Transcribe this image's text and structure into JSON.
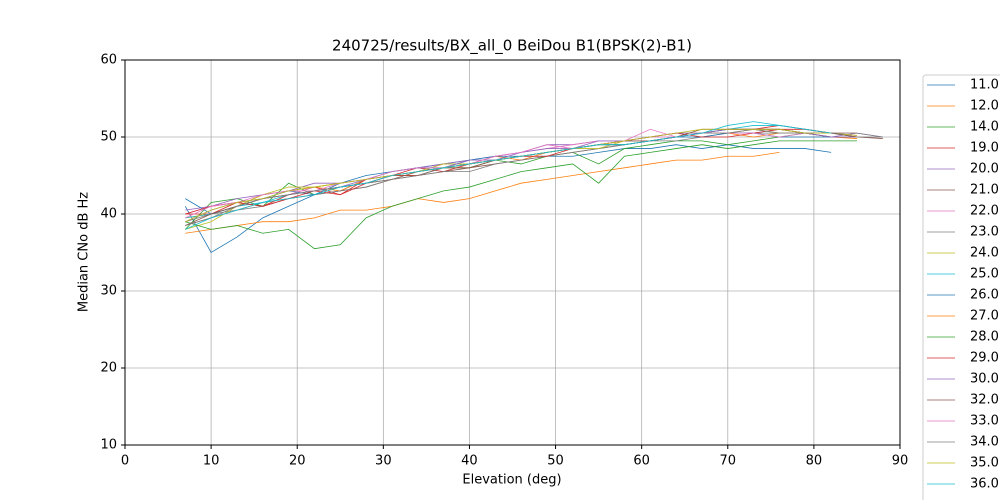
{
  "chart_data": {
    "type": "line",
    "title": "240725/results/BX_all_0 BeiDou B1(BPSK(2)-B1)",
    "x_label": "Elevation (deg)",
    "y_label": "Median CNo dB Hz",
    "x": [
      7,
      10,
      13,
      16,
      19,
      22,
      25,
      28,
      31,
      34,
      37,
      40,
      43,
      46,
      49,
      52,
      55,
      58,
      61,
      64,
      67,
      70,
      73,
      76,
      79,
      82,
      85,
      88
    ],
    "xlim": [
      0,
      90
    ],
    "xticks": [
      0,
      10,
      20,
      30,
      40,
      50,
      60,
      70,
      80,
      90
    ],
    "ylim": [
      10,
      60
    ],
    "yticks": [
      10,
      20,
      30,
      40,
      50,
      60
    ],
    "grid": true,
    "legend": "right",
    "series": [
      {
        "name": "11.0",
        "color": "#1f77b4",
        "values": [
          41,
          35,
          37,
          39.5,
          41,
          42.5,
          43,
          44.5,
          45.5,
          46,
          46.5,
          47,
          47,
          47.5,
          47.5,
          47.5,
          48,
          48.5,
          48.5,
          49,
          48.5,
          49,
          48.5,
          48.5,
          48.5,
          48,
          null,
          null
        ]
      },
      {
        "name": "12.0",
        "color": "#ff7f0e",
        "values": [
          39.5,
          40,
          41,
          42.5,
          43,
          43.5,
          43,
          44.5,
          45,
          45.5,
          46,
          46.5,
          47.5,
          47,
          48,
          48.5,
          49,
          49.5,
          49.5,
          50,
          50.5,
          50.5,
          50,
          50.5,
          50.5,
          50,
          49.8,
          null
        ]
      },
      {
        "name": "14.0",
        "color": "#2ca02c",
        "values": [
          38,
          41.5,
          42,
          41,
          44,
          42.5,
          43.5,
          44,
          45,
          45,
          46,
          46,
          47,
          46.5,
          47.5,
          48,
          46.5,
          48.5,
          49,
          49.5,
          49.5,
          49,
          49.5,
          50,
          50.5,
          50,
          null,
          null
        ]
      },
      {
        "name": "19.0",
        "color": "#d62728",
        "values": [
          40,
          40,
          41.5,
          41,
          42.5,
          43.5,
          42.5,
          44.5,
          45,
          46,
          45.5,
          46.5,
          47,
          47.5,
          48,
          48.5,
          49,
          49,
          49.5,
          50,
          50.5,
          51,
          51,
          51.5,
          51,
          50.5,
          50,
          null
        ]
      },
      {
        "name": "20.0",
        "color": "#9467bd",
        "values": [
          40.5,
          41,
          42,
          42.5,
          43,
          44,
          44,
          44.5,
          45.5,
          46,
          46.5,
          47,
          47.5,
          48,
          49,
          49,
          49.5,
          49.5,
          50,
          50.5,
          50.5,
          50.5,
          50.5,
          51,
          50.5,
          50,
          50.5,
          50
        ]
      },
      {
        "name": "21.0",
        "color": "#8c564b",
        "values": [
          38.5,
          39.5,
          40.5,
          41.5,
          42,
          42.5,
          43,
          43.5,
          44.5,
          45,
          45.5,
          46,
          46.5,
          47,
          47.5,
          48,
          48.5,
          49,
          49.5,
          50,
          50.5,
          51,
          51,
          51,
          50.5,
          50,
          50,
          49.8
        ]
      },
      {
        "name": "22.0",
        "color": "#e377c2",
        "values": [
          40,
          41,
          41.5,
          42,
          42.5,
          43.5,
          44,
          44.5,
          45,
          45.5,
          46.5,
          46.5,
          47.5,
          48,
          48.5,
          49,
          49.5,
          49.5,
          50,
          50,
          50.5,
          50.5,
          51,
          50.5,
          50.5,
          50.5,
          50.2,
          null
        ]
      },
      {
        "name": "23.0",
        "color": "#7f7f7f",
        "values": [
          39,
          40,
          40.5,
          41,
          42,
          42.5,
          43,
          43.5,
          44.5,
          45,
          45.5,
          45.5,
          46.5,
          47,
          47.5,
          48,
          48.5,
          49,
          49.5,
          49.5,
          50,
          50.5,
          50.5,
          50.5,
          50.5,
          50,
          50,
          50
        ]
      },
      {
        "name": "24.0",
        "color": "#bcbd22",
        "values": [
          38,
          39,
          41,
          42.5,
          43.5,
          43.5,
          44,
          44.5,
          45,
          45.5,
          46.5,
          46.5,
          47,
          47.5,
          48,
          48.5,
          48.5,
          49.5,
          50,
          50.5,
          50.5,
          50.5,
          51,
          50.5,
          50.5,
          50.5,
          50.2,
          null
        ]
      },
      {
        "name": "25.0",
        "color": "#17becf",
        "values": [
          39.5,
          40,
          41,
          41.5,
          42.5,
          43,
          43.5,
          44,
          45,
          45.5,
          46,
          46.5,
          47,
          47.5,
          48,
          48.5,
          49,
          49,
          49.5,
          50,
          50.5,
          51,
          51.5,
          51.5,
          51,
          50.5,
          50,
          null
        ]
      },
      {
        "name": "26.0",
        "color": "#1f77b4",
        "values": [
          42,
          40,
          41,
          42,
          43,
          42.5,
          44,
          45,
          45.5,
          46,
          46,
          47,
          47.5,
          47.5,
          48,
          48.5,
          49,
          49.5,
          49.5,
          50,
          50,
          50.5,
          50.5,
          50,
          50,
          50,
          null,
          null
        ]
      },
      {
        "name": "27.0",
        "color": "#ff7f0e",
        "values": [
          37.5,
          38,
          38.5,
          39,
          39,
          39.5,
          40.5,
          40.5,
          41,
          42,
          41.5,
          42,
          43,
          44,
          44.5,
          45,
          45.5,
          46,
          46.5,
          47,
          47,
          47.5,
          47.5,
          48,
          null,
          null,
          null,
          null
        ]
      },
      {
        "name": "28.0",
        "color": "#2ca02c",
        "values": [
          39,
          38,
          38.5,
          37.5,
          38,
          35.5,
          36,
          39.5,
          41,
          42,
          43,
          43.5,
          44.5,
          45.5,
          46,
          46.5,
          44,
          47.5,
          48,
          48.5,
          49,
          48.5,
          49,
          49.5,
          49.5,
          49.5,
          49.5,
          null
        ]
      },
      {
        "name": "29.0",
        "color": "#d62728",
        "values": [
          40,
          41,
          41.5,
          41,
          42,
          43,
          42.5,
          44,
          45,
          45,
          46,
          46.5,
          47,
          47.5,
          47.5,
          48.5,
          49,
          49.5,
          50,
          50.5,
          50,
          50,
          50.5,
          51,
          51,
          50.5,
          50.5,
          null
        ]
      },
      {
        "name": "30.0",
        "color": "#9467bd",
        "values": [
          39,
          40.5,
          41.5,
          42,
          42.5,
          43,
          43.5,
          44.5,
          45,
          45.5,
          46,
          47,
          47,
          48,
          48.5,
          48.5,
          49.5,
          49.5,
          50,
          50.5,
          50.5,
          51,
          51,
          51,
          50.5,
          50,
          50,
          null
        ]
      },
      {
        "name": "32.0",
        "color": "#8c564b",
        "values": [
          38.5,
          40,
          41,
          42,
          42.5,
          43,
          43.5,
          44,
          44.5,
          45.5,
          46,
          46,
          47,
          47.5,
          48,
          48.5,
          49,
          49.5,
          49.5,
          50,
          51,
          51,
          51,
          51,
          50.5,
          50.5,
          50,
          null
        ]
      },
      {
        "name": "33.0",
        "color": "#e377c2",
        "values": [
          39.5,
          41,
          41.5,
          42.5,
          43,
          43,
          44,
          44.5,
          45.5,
          46,
          46,
          46.5,
          47.5,
          48,
          49,
          48.5,
          49,
          49.5,
          51,
          50,
          50.5,
          50.5,
          50.5,
          50,
          50.5,
          50.5,
          null,
          null
        ]
      },
      {
        "name": "34.0",
        "color": "#7f7f7f",
        "values": [
          38.5,
          39.5,
          41,
          42,
          42.5,
          43,
          43.5,
          44,
          44.5,
          45,
          46,
          46.5,
          47,
          47.5,
          48,
          48.5,
          49,
          49,
          49.5,
          50,
          50.5,
          50.5,
          51,
          50.5,
          50.5,
          50.5,
          50.5,
          50
        ]
      },
      {
        "name": "35.0",
        "color": "#bcbd22",
        "values": [
          39,
          40.5,
          41.5,
          42,
          43,
          43.5,
          44,
          44.5,
          45,
          45.5,
          46,
          46.5,
          47,
          47.5,
          48,
          48.5,
          49,
          49.5,
          50,
          50.5,
          51,
          51,
          51,
          51,
          50.5,
          50.5,
          null,
          null
        ]
      },
      {
        "name": "36.0",
        "color": "#17becf",
        "values": [
          38,
          39.5,
          40.5,
          41.5,
          42,
          42.5,
          43.5,
          44,
          45,
          45.5,
          46,
          46.5,
          47,
          47.5,
          48,
          48.5,
          49,
          49,
          49.5,
          50,
          50.5,
          51.5,
          52,
          51.5,
          51,
          50.5,
          null,
          null
        ]
      }
    ]
  }
}
